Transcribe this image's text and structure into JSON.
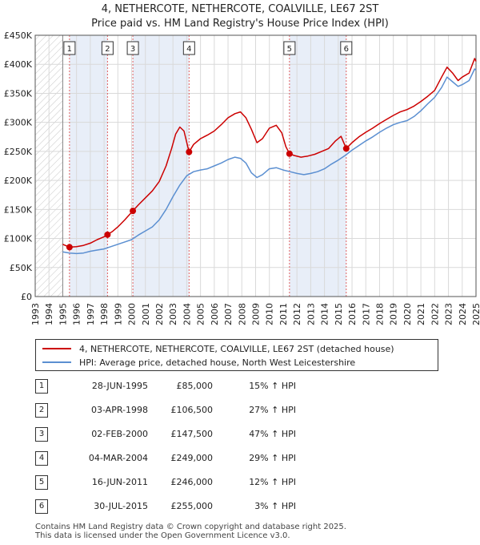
{
  "title": "4, NETHERCOTE, NETHERCOTE, COALVILLE, LE67 2ST",
  "subtitle": "Price paid vs. HM Land Registry's House Price Index (HPI)",
  "chart_data": {
    "type": "line",
    "ylim": [
      0,
      450000
    ],
    "xlim": [
      1993,
      2025
    ],
    "y_ticks": [
      {
        "value": 0,
        "label": "£0"
      },
      {
        "value": 50000,
        "label": "£50K"
      },
      {
        "value": 100000,
        "label": "£100K"
      },
      {
        "value": 150000,
        "label": "£150K"
      },
      {
        "value": 200000,
        "label": "£200K"
      },
      {
        "value": 250000,
        "label": "£250K"
      },
      {
        "value": 300000,
        "label": "£300K"
      },
      {
        "value": 350000,
        "label": "£350K"
      },
      {
        "value": 400000,
        "label": "£400K"
      },
      {
        "value": 450000,
        "label": "£450K"
      }
    ],
    "x_ticks": [
      "1993",
      "1994",
      "1995",
      "1996",
      "1997",
      "1998",
      "1999",
      "2000",
      "2001",
      "2002",
      "2003",
      "2004",
      "2005",
      "2006",
      "2007",
      "2008",
      "2009",
      "2010",
      "2011",
      "2012",
      "2013",
      "2014",
      "2015",
      "2016",
      "2017",
      "2018",
      "2019",
      "2020",
      "2021",
      "2022",
      "2023",
      "2024",
      "2025"
    ],
    "grid": true,
    "hatched_range": [
      1993,
      1995.0
    ],
    "series": [
      {
        "name": "4, NETHERCOTE, NETHERCOTE, COALVILLE, LE67 2ST (detached house)",
        "color": "#cc0000",
        "points": [
          [
            1995.0,
            90000
          ],
          [
            1995.49,
            85000
          ],
          [
            1996.0,
            86000
          ],
          [
            1996.5,
            88000
          ],
          [
            1997.0,
            92000
          ],
          [
            1997.5,
            98000
          ],
          [
            1998.0,
            103000
          ],
          [
            1998.25,
            106500
          ],
          [
            1998.6,
            112000
          ],
          [
            1999.0,
            120000
          ],
          [
            1999.5,
            132000
          ],
          [
            2000.09,
            147500
          ],
          [
            2000.5,
            158000
          ],
          [
            2001.0,
            170000
          ],
          [
            2001.5,
            182000
          ],
          [
            2002.0,
            198000
          ],
          [
            2002.5,
            225000
          ],
          [
            2002.9,
            255000
          ],
          [
            2003.2,
            280000
          ],
          [
            2003.5,
            292000
          ],
          [
            2003.8,
            285000
          ],
          [
            2004.17,
            249000
          ],
          [
            2004.5,
            262000
          ],
          [
            2005.0,
            272000
          ],
          [
            2005.5,
            278000
          ],
          [
            2006.0,
            285000
          ],
          [
            2006.5,
            296000
          ],
          [
            2007.0,
            308000
          ],
          [
            2007.5,
            315000
          ],
          [
            2007.9,
            318000
          ],
          [
            2008.3,
            308000
          ],
          [
            2008.7,
            288000
          ],
          [
            2009.1,
            265000
          ],
          [
            2009.5,
            272000
          ],
          [
            2010.0,
            290000
          ],
          [
            2010.5,
            295000
          ],
          [
            2010.9,
            282000
          ],
          [
            2011.2,
            258000
          ],
          [
            2011.46,
            246000
          ],
          [
            2011.8,
            243000
          ],
          [
            2012.3,
            240000
          ],
          [
            2012.8,
            242000
          ],
          [
            2013.3,
            245000
          ],
          [
            2013.8,
            250000
          ],
          [
            2014.3,
            255000
          ],
          [
            2014.8,
            268000
          ],
          [
            2015.2,
            276000
          ],
          [
            2015.58,
            255000
          ],
          [
            2016.0,
            265000
          ],
          [
            2016.5,
            275000
          ],
          [
            2017.0,
            283000
          ],
          [
            2017.5,
            290000
          ],
          [
            2018.0,
            298000
          ],
          [
            2018.5,
            305000
          ],
          [
            2019.0,
            312000
          ],
          [
            2019.5,
            318000
          ],
          [
            2020.0,
            322000
          ],
          [
            2020.5,
            328000
          ],
          [
            2021.0,
            336000
          ],
          [
            2021.5,
            345000
          ],
          [
            2022.0,
            355000
          ],
          [
            2022.5,
            378000
          ],
          [
            2022.9,
            395000
          ],
          [
            2023.3,
            385000
          ],
          [
            2023.7,
            372000
          ],
          [
            2024.0,
            378000
          ],
          [
            2024.5,
            385000
          ],
          [
            2024.9,
            410000
          ],
          [
            2025.0,
            405000
          ]
        ]
      },
      {
        "name": "HPI: Average price, detached house, North West Leicestershire",
        "color": "#5b8fd1",
        "points": [
          [
            1995.0,
            77000
          ],
          [
            1995.5,
            75000
          ],
          [
            1996.0,
            74000
          ],
          [
            1996.5,
            75000
          ],
          [
            1997.0,
            78000
          ],
          [
            1997.5,
            80000
          ],
          [
            1998.0,
            82000
          ],
          [
            1998.5,
            86000
          ],
          [
            1999.0,
            90000
          ],
          [
            1999.5,
            94000
          ],
          [
            2000.0,
            98000
          ],
          [
            2000.5,
            106000
          ],
          [
            2001.0,
            113000
          ],
          [
            2001.5,
            120000
          ],
          [
            2002.0,
            132000
          ],
          [
            2002.5,
            150000
          ],
          [
            2003.0,
            172000
          ],
          [
            2003.5,
            192000
          ],
          [
            2004.0,
            208000
          ],
          [
            2004.5,
            215000
          ],
          [
            2005.0,
            218000
          ],
          [
            2005.5,
            220000
          ],
          [
            2006.0,
            225000
          ],
          [
            2006.5,
            230000
          ],
          [
            2007.0,
            236000
          ],
          [
            2007.5,
            240000
          ],
          [
            2007.9,
            238000
          ],
          [
            2008.3,
            230000
          ],
          [
            2008.7,
            213000
          ],
          [
            2009.1,
            205000
          ],
          [
            2009.5,
            210000
          ],
          [
            2010.0,
            220000
          ],
          [
            2010.5,
            222000
          ],
          [
            2011.0,
            218000
          ],
          [
            2011.5,
            215000
          ],
          [
            2012.0,
            212000
          ],
          [
            2012.5,
            210000
          ],
          [
            2013.0,
            212000
          ],
          [
            2013.5,
            215000
          ],
          [
            2014.0,
            220000
          ],
          [
            2014.5,
            228000
          ],
          [
            2015.0,
            235000
          ],
          [
            2015.5,
            243000
          ],
          [
            2016.0,
            252000
          ],
          [
            2016.5,
            260000
          ],
          [
            2017.0,
            268000
          ],
          [
            2017.5,
            275000
          ],
          [
            2018.0,
            283000
          ],
          [
            2018.5,
            290000
          ],
          [
            2019.0,
            296000
          ],
          [
            2019.5,
            300000
          ],
          [
            2020.0,
            303000
          ],
          [
            2020.5,
            310000
          ],
          [
            2021.0,
            320000
          ],
          [
            2021.5,
            332000
          ],
          [
            2022.0,
            343000
          ],
          [
            2022.5,
            360000
          ],
          [
            2022.9,
            378000
          ],
          [
            2023.3,
            370000
          ],
          [
            2023.7,
            362000
          ],
          [
            2024.0,
            365000
          ],
          [
            2024.5,
            372000
          ],
          [
            2024.9,
            392000
          ],
          [
            2025.0,
            390000
          ]
        ]
      }
    ],
    "sales_markers": [
      {
        "label": "1",
        "x": 1995.49,
        "y": 85000
      },
      {
        "label": "2",
        "x": 1998.25,
        "y": 106500
      },
      {
        "label": "3",
        "x": 2000.09,
        "y": 147500
      },
      {
        "label": "4",
        "x": 2004.17,
        "y": 249000
      },
      {
        "label": "5",
        "x": 2011.46,
        "y": 246000
      },
      {
        "label": "6",
        "x": 2015.58,
        "y": 255000
      }
    ]
  },
  "legend": {
    "item1": "4, NETHERCOTE, NETHERCOTE, COALVILLE, LE67 2ST (detached house)",
    "item2": "HPI: Average price, detached house, North West Leicestershire",
    "red": "#cc0000",
    "blue": "#5b8fd1"
  },
  "sales": [
    {
      "num": "1",
      "date": "28-JUN-1995",
      "price": "£85,000",
      "hpi": "15% ↑ HPI"
    },
    {
      "num": "2",
      "date": "03-APR-1998",
      "price": "£106,500",
      "hpi": "27% ↑ HPI"
    },
    {
      "num": "3",
      "date": "02-FEB-2000",
      "price": "£147,500",
      "hpi": "47% ↑ HPI"
    },
    {
      "num": "4",
      "date": "04-MAR-2004",
      "price": "£249,000",
      "hpi": "29% ↑ HPI"
    },
    {
      "num": "5",
      "date": "16-JUN-2011",
      "price": "£246,000",
      "hpi": "12% ↑ HPI"
    },
    {
      "num": "6",
      "date": "30-JUL-2015",
      "price": "£255,000",
      "hpi": "3% ↑ HPI"
    }
  ],
  "footer": {
    "line1": "Contains HM Land Registry data © Crown copyright and database right 2025.",
    "line2": "This data is licensed under the Open Government Licence v3.0."
  }
}
